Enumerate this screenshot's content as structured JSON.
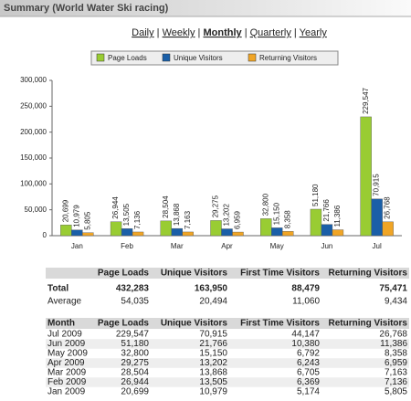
{
  "header": {
    "title": "Summary (World Water Ski racing)"
  },
  "nav": {
    "links": [
      "Daily",
      "Weekly",
      "Monthly",
      "Quarterly",
      "Yearly"
    ],
    "active": 2,
    "separator": "|"
  },
  "chart_data": {
    "type": "bar",
    "legend": "top",
    "categories": [
      "Jan",
      "Feb",
      "Mar",
      "Apr",
      "May",
      "Jun",
      "Jul"
    ],
    "series": [
      {
        "name": "Page Loads",
        "color": "#99cc33",
        "values": [
          20699,
          26944,
          28504,
          29275,
          32800,
          51180,
          229547
        ],
        "value_labels": [
          "20,699",
          "26,944",
          "28,504",
          "29,275",
          "32,800",
          "51,180",
          "229,547"
        ]
      },
      {
        "name": "Unique Visitors",
        "color": "#1a5fa8",
        "values": [
          10979,
          13505,
          13868,
          13202,
          15150,
          21766,
          70915
        ],
        "value_labels": [
          "10,979",
          "13,505",
          "13,868",
          "13,202",
          "15,150",
          "21,766",
          "70,915"
        ]
      },
      {
        "name": "Returning Visitors",
        "color": "#f0a526",
        "values": [
          5805,
          7136,
          7163,
          6959,
          8358,
          11386,
          26768
        ],
        "value_labels": [
          "5,805",
          "7,136",
          "7,163",
          "6,959",
          "8,358",
          "11,386",
          "26,768"
        ]
      }
    ],
    "ylim": [
      0,
      300000
    ],
    "yticks": [
      {
        "value": 0,
        "label": "0"
      },
      {
        "value": 50000,
        "label": "50,000"
      },
      {
        "value": 100000,
        "label": "100,000"
      },
      {
        "value": 150000,
        "label": "150,000"
      },
      {
        "value": 200000,
        "label": "200,000"
      },
      {
        "value": 250000,
        "label": "250,000"
      },
      {
        "value": 300000,
        "label": "300,000"
      }
    ],
    "grid": false
  },
  "summary_table": {
    "columns": [
      "Page Loads",
      "Unique Visitors",
      "First Time Visitors",
      "Returning Visitors"
    ],
    "rows": [
      {
        "label": "Total",
        "cells": [
          "432,283",
          "163,950",
          "88,479",
          "75,471"
        ]
      },
      {
        "label": "Average",
        "cells": [
          "54,035",
          "20,494",
          "11,060",
          "9,434"
        ]
      }
    ]
  },
  "monthly_table": {
    "columns": [
      "Month",
      "Page Loads",
      "Unique Visitors",
      "First Time Visitors",
      "Returning Visitors"
    ],
    "rows": [
      [
        "Jul 2009",
        "229,547",
        "70,915",
        "44,147",
        "26,768"
      ],
      [
        "Jun 2009",
        "51,180",
        "21,766",
        "10,380",
        "11,386"
      ],
      [
        "May 2009",
        "32,800",
        "15,150",
        "6,792",
        "8,358"
      ],
      [
        "Apr 2009",
        "29,275",
        "13,202",
        "6,243",
        "6,959"
      ],
      [
        "Mar 2009",
        "28,504",
        "13,868",
        "6,705",
        "7,163"
      ],
      [
        "Feb 2009",
        "26,944",
        "13,505",
        "6,369",
        "7,136"
      ],
      [
        "Jan 2009",
        "20,699",
        "10,979",
        "5,174",
        "5,805"
      ]
    ]
  }
}
